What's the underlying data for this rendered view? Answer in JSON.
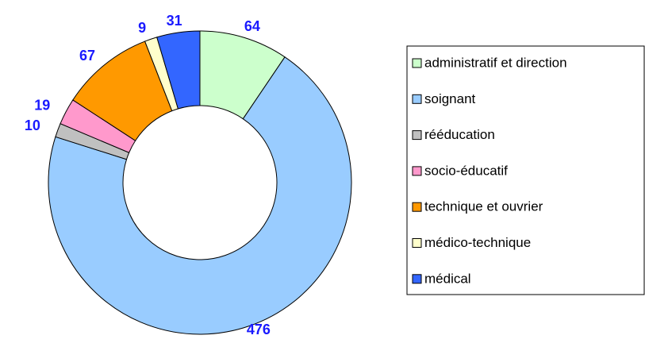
{
  "chart_data": {
    "type": "donut",
    "categories": [
      "administratif et direction",
      "soignant",
      "rééducation",
      "socio-éducatif",
      "technique et ouvrier",
      "médico-technique",
      "médical"
    ],
    "values": [
      64,
      476,
      10,
      19,
      67,
      9,
      31
    ],
    "colors": [
      "#ccffcc",
      "#99ccff",
      "#c0c0c0",
      "#ff99cc",
      "#ff9900",
      "#ffffcc",
      "#3366ff"
    ],
    "legend": "right"
  }
}
